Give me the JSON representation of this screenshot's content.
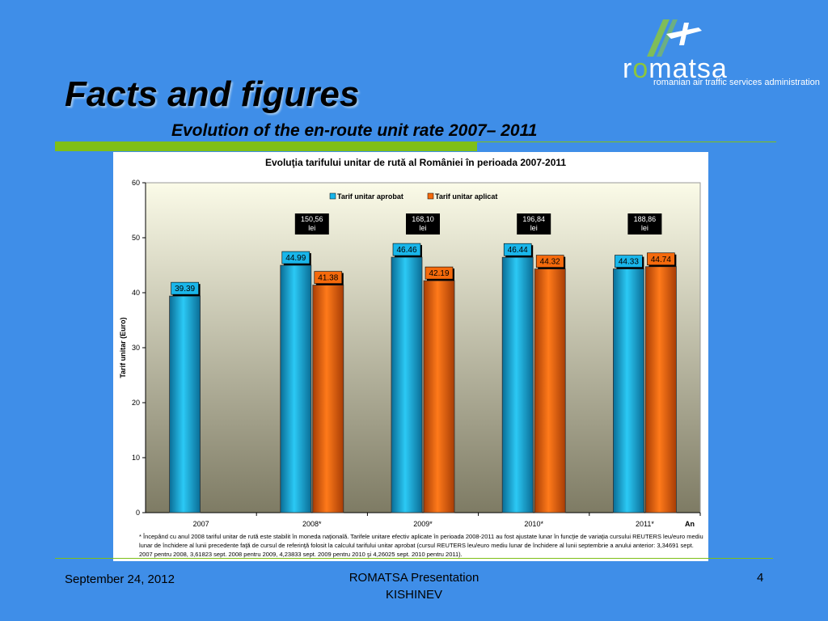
{
  "slide": {
    "title": "Facts and figures",
    "subtitle": "Evolution of the en-route unit rate 2007– 2011"
  },
  "logo": {
    "text_left": "r",
    "text_o": "o",
    "text_right": "matsa",
    "tagline": "romanian air traffic services administration"
  },
  "colors": {
    "background": "#3f8ee8",
    "accent_green": "#7fbf16",
    "series_approved": "#19b6ea",
    "series_applied": "#f56a0c"
  },
  "chart_data": {
    "type": "bar",
    "title": "Evoluţia tarifului unitar de rută al României în perioada 2007-2011",
    "ylabel": "Tarif unitar (Euro)",
    "xlabel": "An",
    "ylim": [
      0,
      60
    ],
    "yticks": [
      0,
      10,
      20,
      30,
      40,
      50,
      60
    ],
    "grid": false,
    "legend_position": "top-center",
    "categories": [
      "2007",
      "2008*",
      "2009*",
      "2010*",
      "2011*"
    ],
    "series": [
      {
        "name": "Tarif unitar aprobat",
        "values": [
          39.39,
          44.99,
          46.46,
          46.44,
          44.33
        ],
        "labels": [
          "39.39",
          "44.99",
          "46.46",
          "46.44",
          "44.33"
        ]
      },
      {
        "name": "Tarif unitar aplicat",
        "values": [
          null,
          41.38,
          42.19,
          44.32,
          44.74
        ],
        "labels": [
          "",
          "41.38",
          "42.19",
          "44.32",
          "44.74"
        ]
      }
    ],
    "annotations": [
      {
        "category": "2008*",
        "line1": "150,56",
        "line2": "lei"
      },
      {
        "category": "2009*",
        "line1": "168,10",
        "line2": "lei"
      },
      {
        "category": "2010*",
        "line1": "196,84",
        "line2": "lei"
      },
      {
        "category": "2011*",
        "line1": "188,86",
        "line2": "lei"
      }
    ]
  },
  "footnote": "* Începând cu anul 2008 tariful unitar de rută este stabilit în moneda naţională. Tarifele unitare efectiv aplicate în perioada 2008-2011 au fost ajustate lunar în funcţie de variaţia cursului REUTERS leu/euro mediu lunar de închidere al lunii precedente faţă de cursul de referinţă folosit la calculul tarifului unitar aprobat (cursul REUTERS leu/euro mediu lunar de închidere al lunii septembrie a anului anterior: 3,34691 sept. 2007 pentru 2008, 3,61823 sept. 2008 pentru 2009, 4,23833 sept. 2009 pentru 2010 şi 4,26025 sept. 2010 pentru 2011).",
  "footer": {
    "date": "September 24, 2012",
    "center_line1": "ROMATSA Presentation",
    "center_line2": "KISHINEV",
    "page": "4"
  }
}
